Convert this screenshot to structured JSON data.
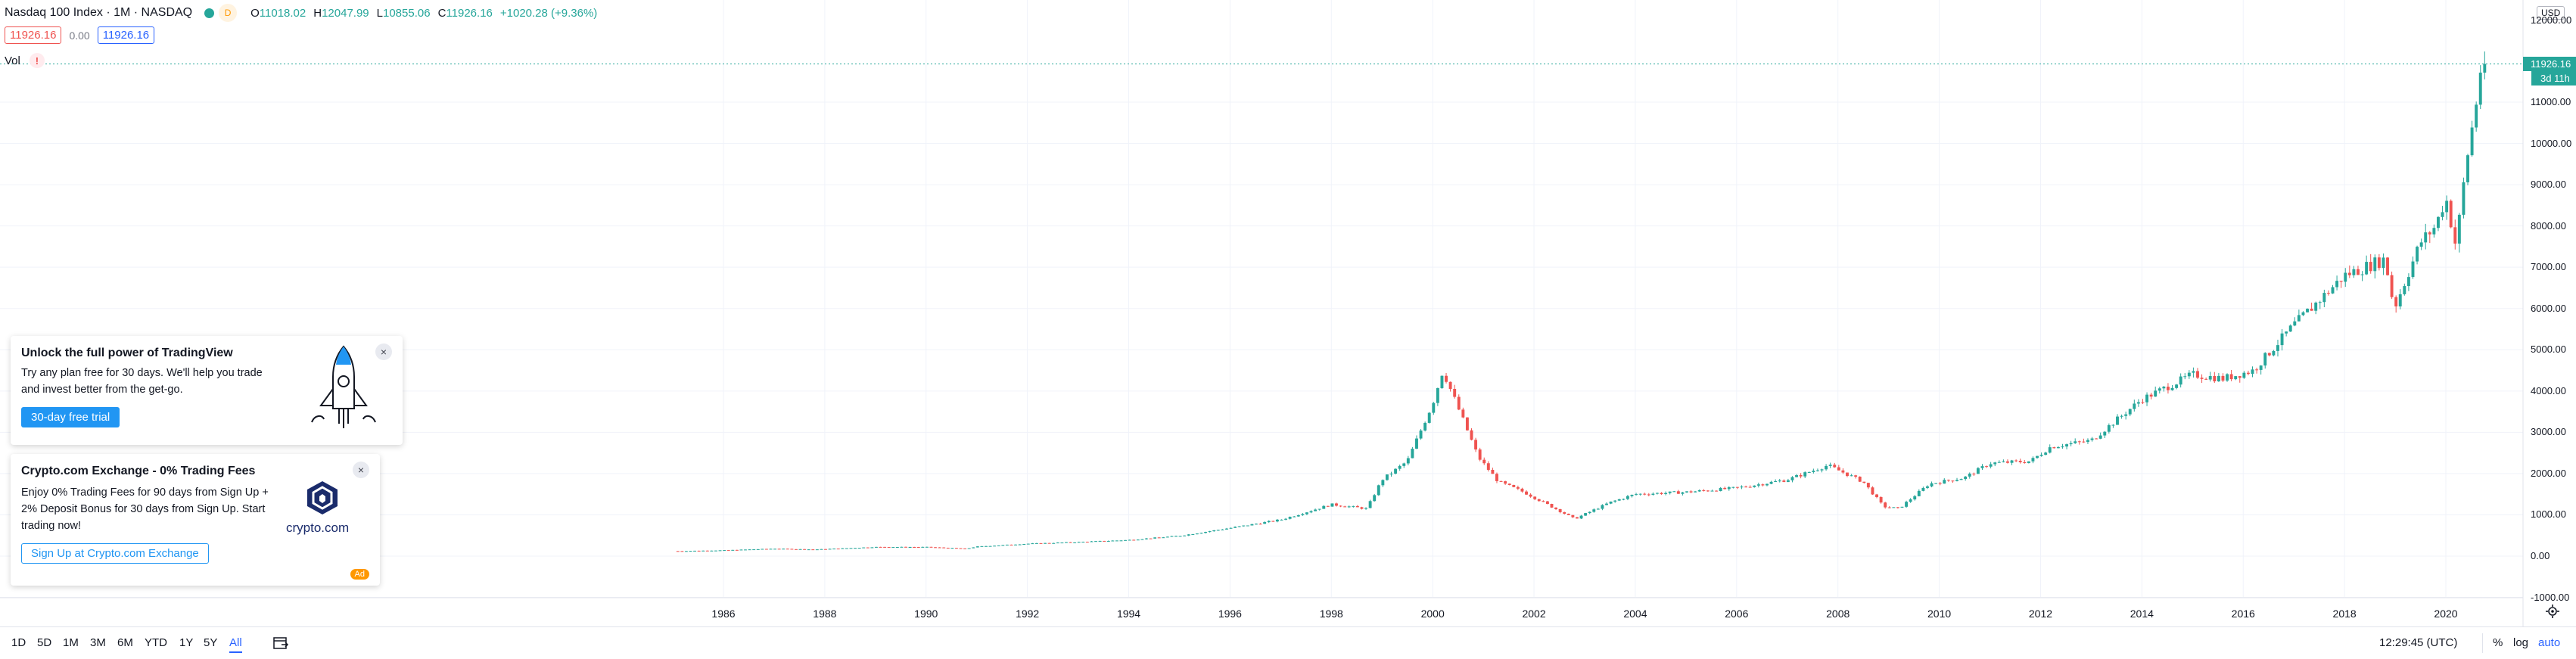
{
  "legend": {
    "symbol": "Nasdaq 100 Index · 1M · NASDAQ",
    "d_badge": "D",
    "open_key": "O",
    "open": "11018.02",
    "high_key": "H",
    "high": "12047.99",
    "low_key": "L",
    "low": "10855.06",
    "close_key": "C",
    "close": "11926.16",
    "change": "+1020.28 (+9.36%)"
  },
  "price_row": {
    "bid": "11926.16",
    "spread": "0.00",
    "ask": "11926.16"
  },
  "volume": {
    "label": "Vol",
    "warning_icon": "!"
  },
  "price_axis": {
    "currency": "USD",
    "top_label": "12000.00",
    "labels": [
      "11000.00",
      "10000.00",
      "9000.00",
      "8000.00",
      "7000.00",
      "6000.00",
      "5000.00",
      "4000.00",
      "3000.00",
      "2000.00",
      "1000.00",
      "0.00",
      "-1000.00"
    ],
    "current_price": "11926.16",
    "time_to_close": "3d 11h"
  },
  "time_axis": {
    "labels": [
      "1986",
      "1988",
      "1990",
      "1992",
      "1994",
      "1996",
      "1998",
      "2000",
      "2002",
      "2004",
      "2006",
      "2008",
      "2010",
      "2012",
      "2014",
      "2016",
      "2018",
      "2020"
    ]
  },
  "bottom_bar": {
    "ranges": [
      "1D",
      "5D",
      "1M",
      "3M",
      "6M",
      "YTD",
      "1Y",
      "5Y",
      "All"
    ],
    "active_range": "All",
    "clock": "12:29:45 (UTC)",
    "percent": "%",
    "log": "log",
    "auto": "auto"
  },
  "promo_tradingview": {
    "title": "Unlock the full power of TradingView",
    "text_line1": "Try any plan free for 30 days. We'll help you trade",
    "text_line2": "and invest better from the get-go.",
    "cta": "30-day free trial",
    "close": "×"
  },
  "promo_crypto": {
    "title": "Crypto.com Exchange - 0% Trading Fees",
    "text_line1": "Enjoy 0% Trading Fees for 90 days from Sign Up +",
    "text_line2": "2% Deposit Bonus for 30 days from Sign Up. Start",
    "text_line3": "trading now!",
    "cta": "Sign Up at Crypto.com Exchange",
    "brand": "crypto.com",
    "ad_badge": "Ad",
    "close": "×"
  },
  "colors": {
    "up": "#26a69a",
    "down": "#ef5350",
    "accent": "#2962ff",
    "grid": "#f0f3fa"
  },
  "chart_data": {
    "type": "candlestick",
    "title": "Nasdaq 100 Index · 1M · NASDAQ",
    "ylim": [
      -1000,
      12000
    ],
    "x_range": [
      1985,
      2020.8
    ],
    "log_scale": false,
    "grid": true,
    "x": [
      1985.0,
      1986.0,
      1987.0,
      1987.8,
      1988.0,
      1989.0,
      1990.0,
      1990.8,
      1991.0,
      1992.0,
      1993.0,
      1994.0,
      1995.0,
      1996.0,
      1997.0,
      1998.0,
      1998.7,
      1999.0,
      1999.5,
      2000.0,
      2000.2,
      2000.5,
      2000.9,
      2001.3,
      2001.8,
      2002.5,
      2002.8,
      2003.5,
      2004.0,
      2005.0,
      2006.0,
      2007.0,
      2007.8,
      2008.5,
      2008.9,
      2009.2,
      2009.8,
      2010.5,
      2011.0,
      2011.8,
      2012.2,
      2013.0,
      2014.0,
      2015.0,
      2015.6,
      2016.2,
      2017.0,
      2018.0,
      2018.8,
      2018.98,
      2019.5,
      2019.8,
      2020.0,
      2020.2,
      2020.4,
      2020.6,
      2020.7
    ],
    "y": [
      120,
      140,
      180,
      160,
      170,
      220,
      220,
      180,
      230,
      300,
      340,
      390,
      490,
      680,
      880,
      1250,
      1150,
      1850,
      2300,
      3700,
      4500,
      3600,
      2400,
      1800,
      1550,
      1100,
      900,
      1300,
      1500,
      1550,
      1650,
      1850,
      2200,
      1800,
      1200,
      1150,
      1750,
      1900,
      2250,
      2300,
      2650,
      2800,
      3800,
      4400,
      4300,
      4500,
      5600,
      6800,
      7200,
      6000,
      7600,
      8000,
      8700,
      7500,
      9500,
      11000,
      11926.16
    ]
  }
}
